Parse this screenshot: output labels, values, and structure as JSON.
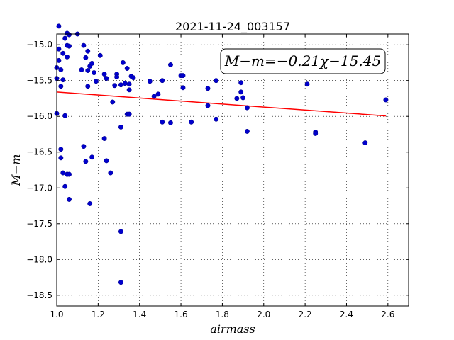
{
  "chart_data": {
    "type": "scatter",
    "title": "2021-11-24_003157",
    "xlabel": "airmass",
    "ylabel": "M−m",
    "xlim": [
      1.0,
      2.7
    ],
    "ylim": [
      -18.65,
      -14.85
    ],
    "invert_y": false,
    "grid": true,
    "xticks": [
      1.0,
      1.2,
      1.4,
      1.6,
      1.8,
      2.0,
      2.2,
      2.4,
      2.6
    ],
    "xtick_labels": [
      "1.0",
      "1.2",
      "1.4",
      "1.6",
      "1.8",
      "2.0",
      "2.2",
      "2.4",
      "2.6"
    ],
    "yticks": [
      -15.0,
      -15.5,
      -16.0,
      -16.5,
      -17.0,
      -17.5,
      -18.0,
      -18.5
    ],
    "ytick_labels": [
      "−15.0",
      "−15.5",
      "−16.0",
      "−16.5",
      "−17.0",
      "−17.5",
      "−18.0",
      "−18.5"
    ],
    "annotation": "M−m=−0.21χ−15.45",
    "annotation_placement": "top-right",
    "colors": {
      "points": "#0000cc",
      "fit": "#ff0000"
    },
    "fit_line": {
      "slope": -0.21,
      "intercept": -15.45,
      "x": [
        1.0,
        2.59
      ]
    },
    "points": {
      "x": [
        1.01,
        1.01,
        1.0,
        1.0,
        1.0,
        1.01,
        1.03,
        1.02,
        1.03,
        1.02,
        1.04,
        1.05,
        1.05,
        1.05,
        1.06,
        1.06,
        1.05,
        1.04,
        1.02,
        1.02,
        1.03,
        1.04,
        1.05,
        1.06,
        1.06,
        1.1,
        1.12,
        1.13,
        1.14,
        1.15,
        1.15,
        1.16,
        1.17,
        1.18,
        1.19,
        1.21,
        1.15,
        1.14,
        1.17,
        1.13,
        1.16,
        1.23,
        1.24,
        1.27,
        1.28,
        1.29,
        1.29,
        1.31,
        1.32,
        1.33,
        1.34,
        1.35,
        1.35,
        1.36,
        1.37,
        1.35,
        1.34,
        1.31,
        1.35,
        1.23,
        1.24,
        1.26,
        1.31,
        1.31,
        1.45,
        1.47,
        1.49,
        1.51,
        1.51,
        1.55,
        1.55,
        1.6,
        1.61,
        1.61,
        1.65,
        1.73,
        1.73,
        1.77,
        1.77,
        1.87,
        1.89,
        1.89,
        1.9,
        1.92,
        1.92,
        2.21,
        2.25,
        2.25,
        2.49,
        2.59
      ],
      "y": [
        -14.74,
        -15.22,
        -15.32,
        -15.47,
        -15.96,
        -15.06,
        -15.12,
        -15.35,
        -15.49,
        -15.58,
        -14.91,
        -14.84,
        -15.01,
        -15.17,
        -14.86,
        -15.02,
        -16.81,
        -16.98,
        -16.46,
        -16.58,
        -16.79,
        -15.99,
        -16.81,
        -16.81,
        -17.16,
        -14.85,
        -15.35,
        -15.01,
        -15.18,
        -15.36,
        -15.09,
        -15.3,
        -15.26,
        -15.39,
        -15.51,
        -15.15,
        -15.58,
        -16.63,
        -16.57,
        -16.42,
        -17.22,
        -15.41,
        -15.47,
        -15.8,
        -15.57,
        -15.41,
        -15.45,
        -15.56,
        -15.25,
        -15.54,
        -15.97,
        -15.55,
        -15.63,
        -15.44,
        -15.46,
        -15.97,
        -15.33,
        -16.15,
        -15.97,
        -16.31,
        -16.62,
        -16.79,
        -17.61,
        -18.32,
        -15.51,
        -15.72,
        -15.69,
        -15.5,
        -16.08,
        -15.28,
        -16.09,
        -15.43,
        -15.43,
        -15.6,
        -16.08,
        -15.61,
        -15.85,
        -15.5,
        -16.04,
        -15.75,
        -15.53,
        -15.66,
        -15.74,
        -15.88,
        -16.21,
        -15.55,
        -16.22,
        -16.24,
        -16.37,
        -15.77
      ]
    }
  }
}
